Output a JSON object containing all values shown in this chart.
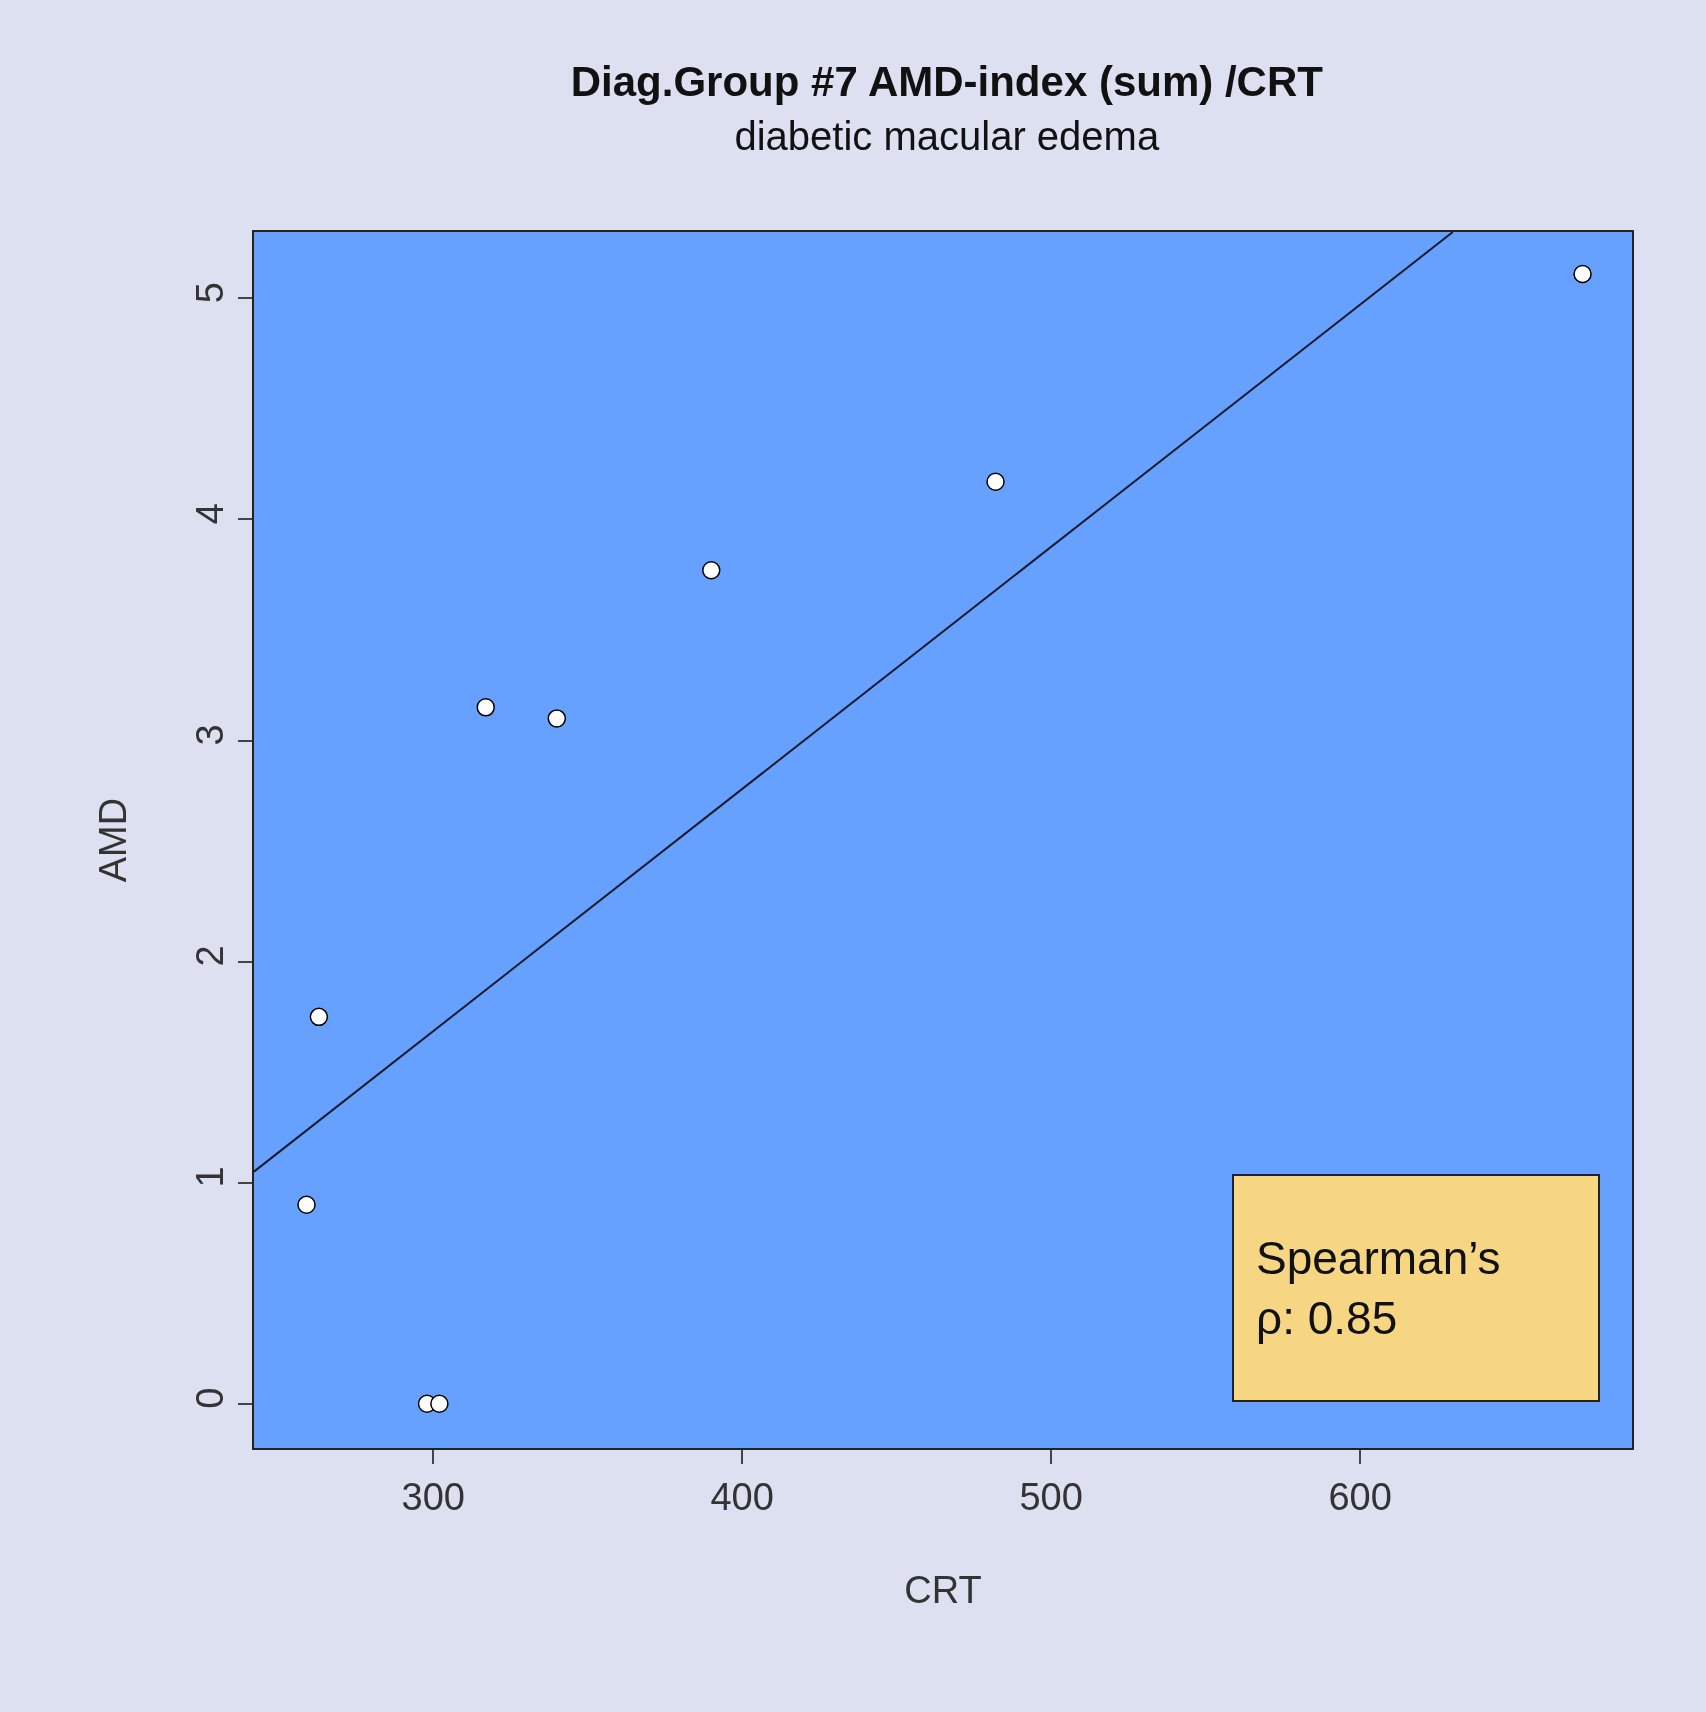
{
  "chart_data": {
    "type": "scatter",
    "title": "Diag.Group #7 AMD-index (sum) /CRT",
    "subtitle": "diabetic macular edema",
    "xlabel": "CRT",
    "ylabel": "AMD",
    "series": [
      {
        "marker": "circle",
        "color": "#ffffff",
        "x": [
          259,
          263,
          298,
          302,
          317,
          340,
          390,
          482,
          672
        ],
        "values": [
          0.9,
          1.75,
          0,
          0,
          3.15,
          3.1,
          3.77,
          4.17,
          5.11
        ]
      },
      {
        "type": "line",
        "color": "#1a1a2e",
        "x": [
          242,
          630
        ],
        "values": [
          1.05,
          5.3
        ]
      }
    ],
    "xlim": [
      242,
      688
    ],
    "ylim": [
      -0.2,
      5.3
    ],
    "xticks": [
      300,
      400,
      500,
      600
    ],
    "yticks": [
      0,
      1,
      2,
      3,
      4,
      5
    ],
    "grid": false,
    "line_style": "solid",
    "annotations": [
      "Spearman’s\nρ: 0.85"
    ]
  }
}
